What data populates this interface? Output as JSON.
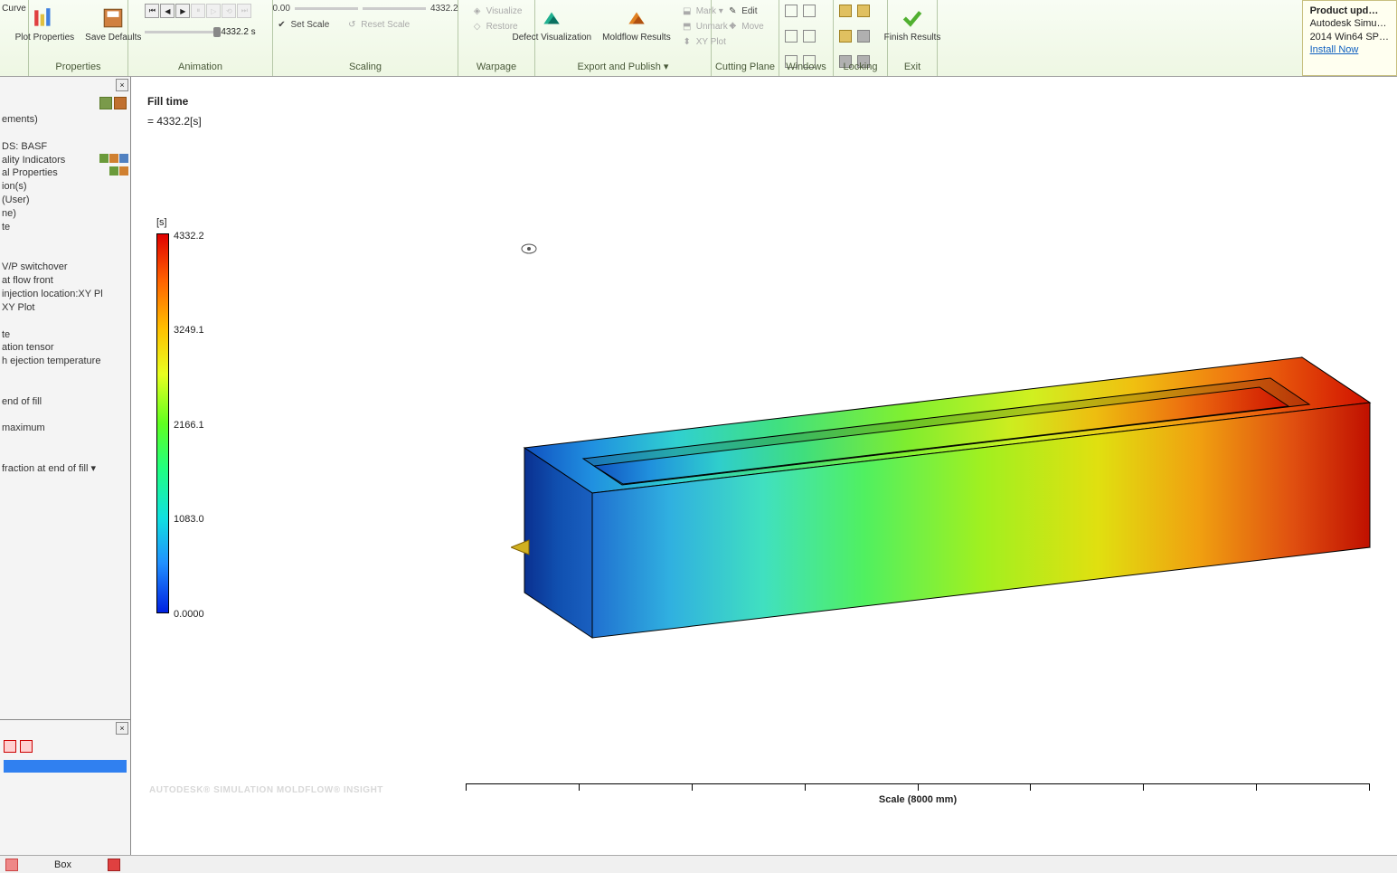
{
  "ribbon": {
    "groups": {
      "first": {
        "title": "",
        "curve_label": "Curve",
        "plot_props_label": "Plot\nProperties",
        "save_defaults_label": "Save\nDefaults"
      },
      "properties": {
        "title": "Properties"
      },
      "animation": {
        "title": "Animation",
        "slider_value": "4332.2 s"
      },
      "scaling": {
        "title": "Scaling",
        "min": "0.00",
        "max": "4332.2",
        "set_scale": "Set Scale",
        "reset_scale": "Reset Scale"
      },
      "warpage": {
        "title": "Warpage",
        "visualize": "Visualize",
        "restore": "Restore"
      },
      "export": {
        "title": "Export and Publish ▾",
        "defect": "Defect\nVisualization",
        "moldflow": "Moldflow\nResults",
        "mark": "Mark ▾",
        "unmark": "Unmark ▾",
        "xyplot": "XY Plot"
      },
      "cutting": {
        "title": "Cutting Plane",
        "edit": "Edit",
        "move": "Move"
      },
      "windows": {
        "title": "Windows"
      },
      "locking": {
        "title": "Locking"
      },
      "finish": {
        "label": "Finish\nResults",
        "title": "Exit"
      }
    },
    "update": {
      "title": "Product upd…",
      "line1": "Autodesk Simu…",
      "line2": "2014 Win64 SP…",
      "install": "Install Now"
    }
  },
  "tree": {
    "items": [
      "ements)",
      "",
      "DS: BASF",
      "ality Indicators",
      "al Properties",
      "ion(s)",
      " (User)",
      "ne)",
      "te",
      "",
      "",
      "V/P switchover",
      "at flow front",
      "injection location:XY Pl",
      "XY Plot",
      "",
      "te",
      "ation tensor",
      "h ejection temperature",
      "",
      "",
      "end of fill",
      "",
      "maximum",
      "",
      "",
      " fraction at end of fill ▾"
    ]
  },
  "viewport": {
    "title": "Fill time",
    "subtitle": "= 4332.2[s]",
    "legend_unit": "[s]",
    "legend_ticks": [
      {
        "pos": 0.0,
        "label": "4332.2"
      },
      {
        "pos": 0.25,
        "label": "3249.1"
      },
      {
        "pos": 0.5,
        "label": "2166.1"
      },
      {
        "pos": 0.75,
        "label": "1083.0"
      },
      {
        "pos": 1.0,
        "label": "0.0000"
      }
    ],
    "scale_label": "Scale (8000 mm)",
    "watermark": "AUTODESK®\nSIMULATION MOLDFLOW®\nINSIGHT"
  },
  "status": {
    "item": "Box"
  },
  "colors": {
    "ribbon_bg": "#eef7e3",
    "accent": "#7a9a4a"
  },
  "model": {
    "type": "3d-simulation-result",
    "gradient_stops": [
      "#0040d0",
      "#1080e0",
      "#20c0e0",
      "#30e090",
      "#80f030",
      "#e0f020",
      "#ffc010",
      "#ff7010",
      "#e01000"
    ],
    "edge_color": "#000000",
    "injection_point_color": "#d0b020"
  }
}
